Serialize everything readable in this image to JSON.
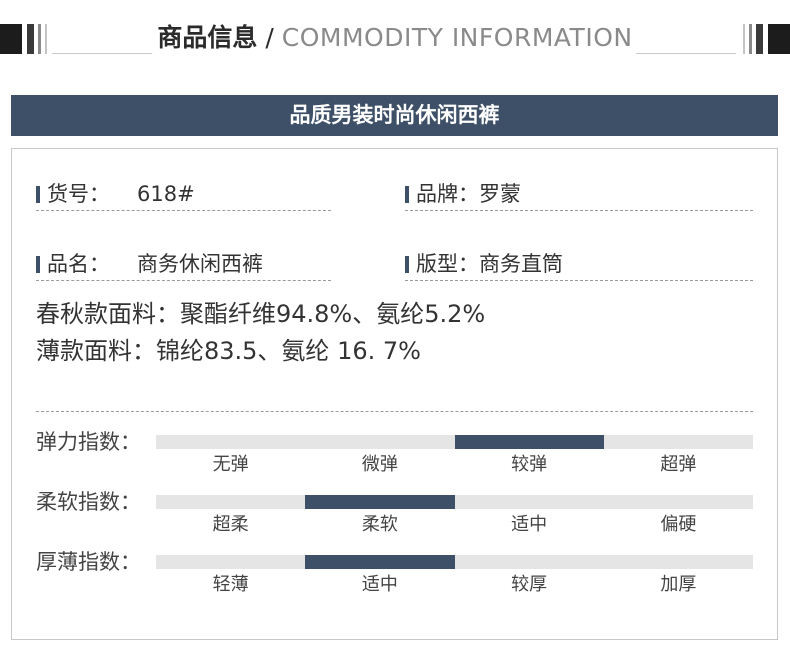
{
  "header": {
    "title_cn": "商品信息",
    "slash": " / ",
    "title_en": "COMMODITY INFORMATION"
  },
  "banner": {
    "title": "品质男装时尚休闲西裤"
  },
  "fields": {
    "item_no": {
      "label": "货号：",
      "value": "618#"
    },
    "brand": {
      "label": "品牌：",
      "value": "罗蒙"
    },
    "name": {
      "label": "品名：",
      "value": "商务休闲西裤"
    },
    "fit": {
      "label": "版型：",
      "value": "商务直筒"
    }
  },
  "fabric": {
    "spring_autumn": "春秋款面料：聚酯纤维94.8%、氨纶5.2%",
    "thin": "薄款面料：锦纶83.5、氨纶 16. 7%"
  },
  "scales": [
    {
      "label": "弹力指数：",
      "options": [
        "无弹",
        "微弹",
        "较弹",
        "超弹"
      ],
      "selected_index": 2
    },
    {
      "label": "柔软指数：",
      "options": [
        "超柔",
        "柔软",
        "适中",
        "偏硬"
      ],
      "selected_index": 1
    },
    {
      "label": "厚薄指数：",
      "options": [
        "轻薄",
        "适中",
        "较厚",
        "加厚"
      ],
      "selected_index": 1
    }
  ],
  "colors": {
    "accent": "#3e5068",
    "track": "#e5e5e5"
  }
}
